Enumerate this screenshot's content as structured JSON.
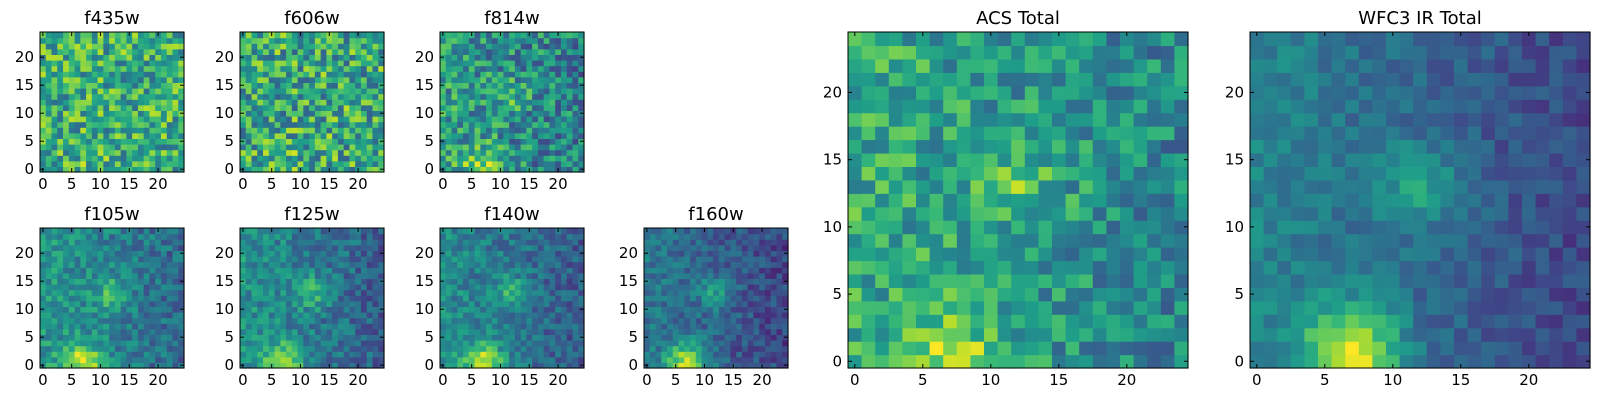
{
  "chart_data": [
    {
      "id": "f435w",
      "type": "heatmap",
      "title": "f435w",
      "size": 25,
      "x_ticks": [
        0,
        5,
        10,
        15,
        20
      ],
      "y_ticks": [
        0,
        5,
        10,
        15,
        20
      ],
      "colormap": "viridis",
      "seed": 11,
      "noise": 0.55,
      "trend": [
        0.05,
        0.0,
        0.0,
        0.0,
        0.0
      ],
      "base": 0.62
    },
    {
      "id": "f606w",
      "type": "heatmap",
      "title": "f606w",
      "size": 25,
      "x_ticks": [
        0,
        5,
        10,
        15,
        20
      ],
      "y_ticks": [
        0,
        5,
        10,
        15,
        20
      ],
      "colormap": "viridis",
      "seed": 23,
      "noise": 0.6,
      "trend": [
        0.1,
        0.0,
        0.0,
        0.0,
        0.0
      ],
      "base": 0.6
    },
    {
      "id": "f814w",
      "type": "heatmap",
      "title": "f814w",
      "size": 25,
      "x_ticks": [
        0,
        5,
        10,
        15,
        20
      ],
      "y_ticks": [
        0,
        5,
        10,
        15,
        20
      ],
      "colormap": "viridis",
      "seed": 37,
      "noise": 0.5,
      "trend": [
        0.35,
        0.15,
        0.12,
        0.0,
        0.0
      ],
      "base": 0.5
    },
    {
      "id": "f105w",
      "type": "heatmap",
      "title": "f105w",
      "size": 25,
      "x_ticks": [
        0,
        5,
        10,
        15,
        20
      ],
      "y_ticks": [
        0,
        5,
        10,
        15,
        20
      ],
      "colormap": "viridis",
      "seed": 41,
      "noise": 0.3,
      "trend": [
        0.45,
        0.25,
        0.2,
        0.0,
        0.0
      ],
      "base": 0.45
    },
    {
      "id": "f125w",
      "type": "heatmap",
      "title": "f125w",
      "size": 25,
      "x_ticks": [
        0,
        5,
        10,
        15,
        20
      ],
      "y_ticks": [
        0,
        5,
        10,
        15,
        20
      ],
      "colormap": "viridis",
      "seed": 53,
      "noise": 0.3,
      "trend": [
        0.45,
        0.25,
        0.2,
        0.0,
        0.0
      ],
      "base": 0.42
    },
    {
      "id": "f140w",
      "type": "heatmap",
      "title": "f140w",
      "size": 25,
      "x_ticks": [
        0,
        5,
        10,
        15,
        20
      ],
      "y_ticks": [
        0,
        5,
        10,
        15,
        20
      ],
      "colormap": "viridis",
      "seed": 61,
      "noise": 0.28,
      "trend": [
        0.5,
        0.25,
        0.2,
        0.0,
        0.0
      ],
      "base": 0.4
    },
    {
      "id": "f160w",
      "type": "heatmap",
      "title": "f160w",
      "size": 25,
      "x_ticks": [
        0,
        5,
        10,
        15,
        20
      ],
      "y_ticks": [
        0,
        5,
        10,
        15,
        20
      ],
      "colormap": "viridis",
      "seed": 71,
      "noise": 0.25,
      "trend": [
        0.55,
        0.25,
        0.2,
        0.0,
        0.0
      ],
      "base": 0.32
    },
    {
      "id": "acs_total",
      "type": "heatmap",
      "title": "ACS Total",
      "size": 25,
      "x_ticks": [
        0,
        5,
        10,
        15,
        20
      ],
      "y_ticks": [
        0,
        5,
        10,
        15,
        20
      ],
      "colormap": "viridis",
      "seed": 83,
      "noise": 0.4,
      "trend": [
        0.3,
        0.2,
        0.15,
        0.0,
        0.0
      ],
      "base": 0.55
    },
    {
      "id": "wfc3_ir_total",
      "type": "heatmap",
      "title": "WFC3 IR Total",
      "size": 25,
      "x_ticks": [
        0,
        5,
        10,
        15,
        20
      ],
      "y_ticks": [
        0,
        5,
        10,
        15,
        20
      ],
      "colormap": "viridis",
      "seed": 97,
      "noise": 0.18,
      "trend": [
        0.6,
        0.25,
        0.25,
        0.0,
        0.0
      ],
      "base": 0.35
    }
  ]
}
